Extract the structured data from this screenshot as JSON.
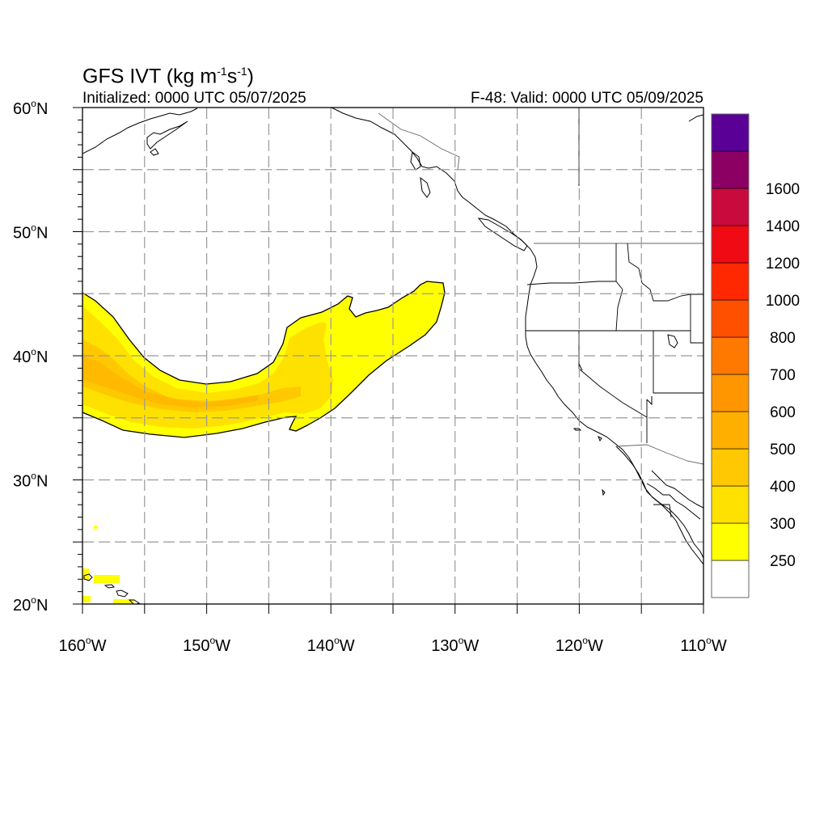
{
  "title": {
    "main": "GFS IVT (kg m",
    "exp1": "-1",
    "mid": "s",
    "exp2": "-1",
    "close": ")"
  },
  "init_text": "Initialized: 0000 UTC 05/07/2025",
  "valid_text": "F-48: Valid: 0000 UTC 05/09/2025",
  "lat_ticks": [
    {
      "value": 60,
      "label": "60",
      "hemi": "N"
    },
    {
      "value": 50,
      "label": "50",
      "hemi": "N"
    },
    {
      "value": 40,
      "label": "40",
      "hemi": "N"
    },
    {
      "value": 30,
      "label": "30",
      "hemi": "N"
    },
    {
      "value": 20,
      "label": "20",
      "hemi": "N"
    }
  ],
  "lon_ticks": [
    {
      "value": -160,
      "label": "160",
      "hemi": "W"
    },
    {
      "value": -150,
      "label": "150",
      "hemi": "W"
    },
    {
      "value": -140,
      "label": "140",
      "hemi": "W"
    },
    {
      "value": -130,
      "label": "130",
      "hemi": "W"
    },
    {
      "value": -120,
      "label": "120",
      "hemi": "W"
    },
    {
      "value": -110,
      "label": "110",
      "hemi": "W"
    }
  ],
  "extent": {
    "lon_min": -160,
    "lon_max": -110,
    "lat_min": 20,
    "lat_max": 60
  },
  "colorbar": {
    "levels": [
      "250",
      "300",
      "400",
      "500",
      "600",
      "700",
      "800",
      "1000",
      "1200",
      "1400",
      "1600"
    ],
    "colors": [
      "#ffff00",
      "#ffe100",
      "#ffc800",
      "#ffaf00",
      "#ff9600",
      "#ff7800",
      "#ff5000",
      "#ff2800",
      "#f00a14",
      "#c80a3c",
      "#8c0064",
      "#5a0096"
    ]
  }
}
